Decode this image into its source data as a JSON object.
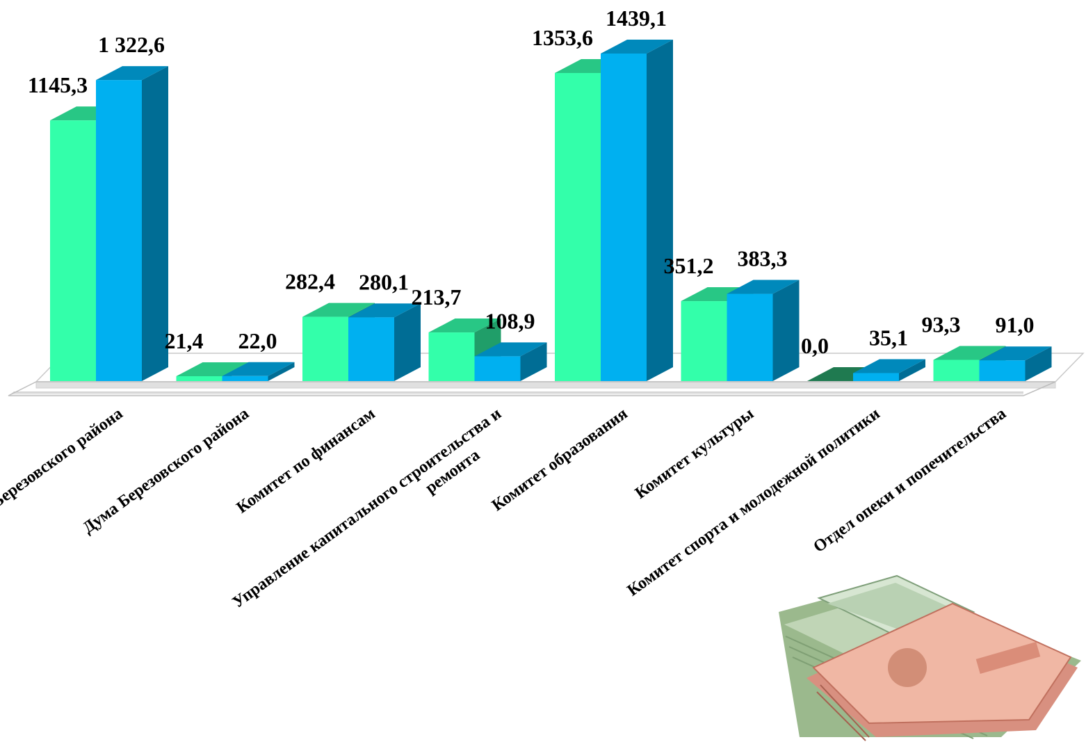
{
  "chart_data": {
    "type": "bar",
    "style": "3d-clustered",
    "categories": [
      [
        "Администрация Березовского района"
      ],
      [
        "Дума Березовского района"
      ],
      [
        "Комитет по финансам"
      ],
      [
        "Управление капитального строительства и",
        "ремонта"
      ],
      [
        "Комитет образования"
      ],
      [
        "Комитет культуры"
      ],
      [
        "Комитет спорта и молодежной политики"
      ],
      [
        "Отдел опеки и попечительства"
      ]
    ],
    "series": [
      {
        "color": "#33FFAA",
        "values": [
          1145.3,
          21.4,
          282.4,
          213.7,
          1353.6,
          351.2,
          0.0,
          93.3
        ],
        "labels": [
          "1145,3",
          "21,4",
          "282,4",
          "213,7",
          "1353,6",
          "351,2",
          "0,0",
          "93,3"
        ]
      },
      {
        "color": "#00B0F0",
        "values": [
          1322.6,
          22.0,
          280.1,
          108.9,
          1439.1,
          383.3,
          35.1,
          91.0
        ],
        "labels": [
          "1 322,6",
          "22,0",
          "280,1",
          "108,9",
          "1439,1",
          "383,3",
          "35,1",
          "91,0"
        ]
      }
    ],
    "ylim": [
      0,
      1439.1
    ],
    "grid": false,
    "legend": "none"
  },
  "decor": {
    "image": "banknotes-icon"
  }
}
